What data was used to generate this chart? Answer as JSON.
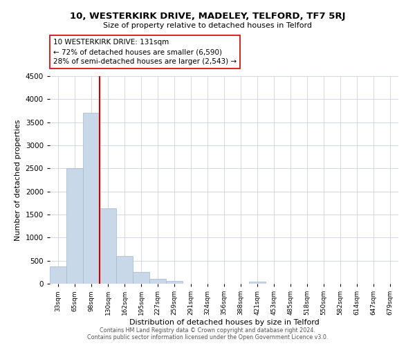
{
  "title": "10, WESTERKIRK DRIVE, MADELEY, TELFORD, TF7 5RJ",
  "subtitle": "Size of property relative to detached houses in Telford",
  "xlabel": "Distribution of detached houses by size in Telford",
  "ylabel": "Number of detached properties",
  "bar_color": "#c8d8e8",
  "bar_edge_color": "#a0b8cc",
  "categories": [
    "33sqm",
    "65sqm",
    "98sqm",
    "130sqm",
    "162sqm",
    "195sqm",
    "227sqm",
    "259sqm",
    "291sqm",
    "324sqm",
    "356sqm",
    "388sqm",
    "421sqm",
    "453sqm",
    "485sqm",
    "518sqm",
    "550sqm",
    "582sqm",
    "614sqm",
    "647sqm",
    "679sqm"
  ],
  "values": [
    380,
    2510,
    3700,
    1630,
    600,
    250,
    100,
    60,
    0,
    0,
    0,
    0,
    50,
    0,
    0,
    0,
    0,
    0,
    0,
    0,
    0
  ],
  "ylim": [
    0,
    4500
  ],
  "yticks": [
    0,
    500,
    1000,
    1500,
    2000,
    2500,
    3000,
    3500,
    4000,
    4500
  ],
  "property_line_color": "#cc0000",
  "annotation_title": "10 WESTERKIRK DRIVE: 131sqm",
  "annotation_line1": "← 72% of detached houses are smaller (6,590)",
  "annotation_line2": "28% of semi-detached houses are larger (2,543) →",
  "annotation_box_color": "#ffffff",
  "annotation_box_edge": "#cc0000",
  "footer_line1": "Contains HM Land Registry data © Crown copyright and database right 2024.",
  "footer_line2": "Contains public sector information licensed under the Open Government Licence v3.0.",
  "background_color": "#ffffff",
  "grid_color": "#d0d8e8"
}
